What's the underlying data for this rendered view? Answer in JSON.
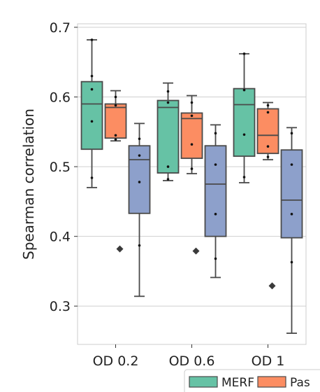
{
  "chart_data": {
    "type": "box",
    "title": "",
    "xlabel": "",
    "ylabel": "Spearman correlation",
    "categories": [
      "OD 0.2",
      "OD 0.6",
      "OD 1"
    ],
    "ylim": [
      0.245,
      0.705
    ],
    "yticks": [
      0.3,
      0.4,
      0.5,
      0.6,
      0.7
    ],
    "ytick_labels": [
      "0.3",
      "0.4",
      "0.5",
      "0.6",
      "0.7"
    ],
    "grid": true,
    "legend_position": "bottom-right",
    "series": [
      {
        "name": "MERF",
        "color": "#66c2a5",
        "boxes": [
          {
            "whisker_low": 0.47,
            "q1": 0.525,
            "median": 0.59,
            "q3": 0.622,
            "whisker_high": 0.682,
            "outliers": [],
            "points": [
              0.682,
              0.63,
              0.611,
              0.565,
              0.484
            ]
          },
          {
            "whisker_low": 0.48,
            "q1": 0.491,
            "median": 0.585,
            "q3": 0.595,
            "whisker_high": 0.62,
            "outliers": [],
            "points": [
              0.608,
              0.592,
              0.5,
              0.482
            ]
          },
          {
            "whisker_low": 0.477,
            "q1": 0.515,
            "median": 0.589,
            "q3": 0.612,
            "whisker_high": 0.662,
            "outliers": [],
            "points": [
              0.662,
              0.61,
              0.546,
              0.485
            ]
          }
        ]
      },
      {
        "name": "Pas",
        "color": "#fc8d62",
        "boxes": [
          {
            "whisker_low": 0.537,
            "q1": 0.541,
            "median": 0.585,
            "q3": 0.59,
            "whisker_high": 0.609,
            "outliers": [],
            "points": [
              0.6,
              0.588,
              0.545,
              0.539
            ]
          },
          {
            "whisker_low": 0.49,
            "q1": 0.512,
            "median": 0.569,
            "q3": 0.577,
            "whisker_high": 0.602,
            "outliers": [],
            "points": [
              0.592,
              0.573,
              0.532,
              0.497
            ]
          },
          {
            "whisker_low": 0.51,
            "q1": 0.519,
            "median": 0.545,
            "q3": 0.583,
            "whisker_high": 0.592,
            "outliers": [],
            "points": [
              0.588,
              0.578,
              0.529,
              0.514
            ]
          }
        ]
      },
      {
        "name": "",
        "color": "#8da0cb",
        "boxes": [
          {
            "whisker_low": 0.314,
            "q1": 0.433,
            "median": 0.51,
            "q3": 0.53,
            "whisker_high": 0.562,
            "outliers": [
              0.382
            ],
            "points": [
              0.54,
              0.516,
              0.478,
              0.387
            ]
          },
          {
            "whisker_low": 0.341,
            "q1": 0.4,
            "median": 0.475,
            "q3": 0.53,
            "whisker_high": 0.56,
            "outliers": [
              0.379
            ],
            "points": [
              0.548,
              0.503,
              0.432,
              0.368
            ]
          },
          {
            "whisker_low": 0.261,
            "q1": 0.398,
            "median": 0.452,
            "q3": 0.524,
            "whisker_high": 0.556,
            "outliers": [
              0.329
            ],
            "points": [
              0.548,
              0.503,
              0.432,
              0.363
            ]
          }
        ]
      }
    ]
  }
}
